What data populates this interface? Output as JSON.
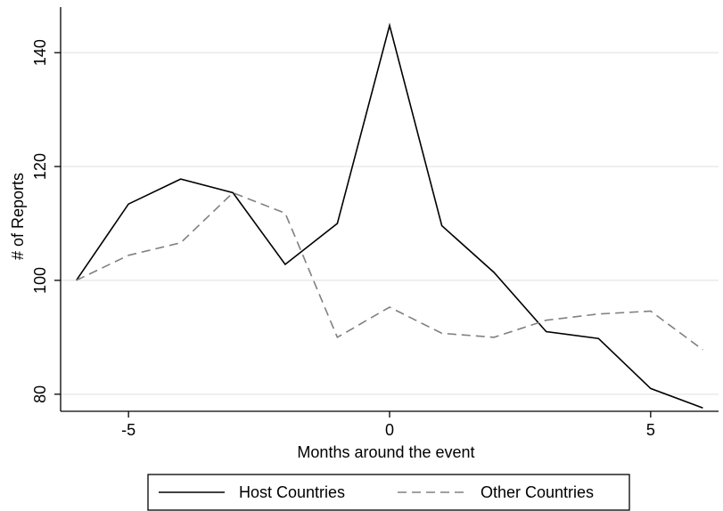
{
  "chart_data": {
    "type": "line",
    "xlabel": "Months around the event",
    "ylabel": "# of Reports",
    "xlim": [
      -6.3,
      6.3
    ],
    "ylim": [
      77,
      148
    ],
    "x_ticks": [
      -5,
      0,
      5
    ],
    "y_ticks": [
      80,
      100,
      120,
      140
    ],
    "grid": "horizontal",
    "legend_placement": "bottom",
    "x": [
      -6,
      -5,
      -4,
      -3,
      -2,
      -1,
      0,
      1,
      2,
      3,
      4,
      5,
      6
    ],
    "series": [
      {
        "name": "Host Countries",
        "style": "solid",
        "color": "#000000",
        "values": [
          100,
          113.4,
          117.8,
          115.4,
          102.8,
          110,
          144.8,
          109.6,
          101.4,
          91,
          89.8,
          81,
          77.6
        ]
      },
      {
        "name": "Other Countries",
        "style": "dashed",
        "color": "#808080",
        "values": [
          100,
          104.4,
          106.6,
          115.4,
          111.8,
          90,
          95.3,
          90.7,
          90,
          93,
          94.1,
          94.6,
          87.8
        ]
      }
    ]
  }
}
